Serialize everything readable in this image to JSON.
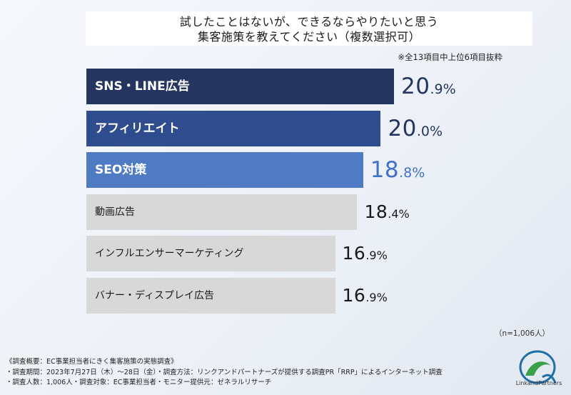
{
  "title": {
    "line1": "試したことはないが、できるならやりたいと思う",
    "line2": "集客施策を教えてください（複数選択可）"
  },
  "note_top": "※全13項目中上位6項目抜粋",
  "colors": {
    "bar1": "#24365f",
    "bar2": "#2e4c8e",
    "bar3": "#4f7bc5",
    "bar_rest": "#d8d8d8",
    "value_top": "#24365f",
    "value_third": "#3f72c4",
    "value_rest": "#1a1a1a"
  },
  "chart_data": {
    "type": "bar",
    "orientation": "horizontal",
    "categories": [
      "SNS・LINE広告",
      "アフィリエイト",
      "SEO対策",
      "動画広告",
      "インフルエンサーマーケティング",
      "バナー・ディスプレイ広告"
    ],
    "values": [
      20.9,
      20.0,
      18.8,
      18.4,
      16.9,
      16.9
    ],
    "labels": [
      {
        "int": "20",
        "dec": ".9%"
      },
      {
        "int": "20",
        "dec": ".0%"
      },
      {
        "int": "18",
        "dec": ".8%"
      },
      {
        "int": "18",
        "dec": ".4%"
      },
      {
        "int": "16",
        "dec": ".9%"
      },
      {
        "int": "16",
        "dec": ".9%"
      }
    ]
  },
  "n_note": "（n=1,006人）",
  "footnotes": [
    "《調査概要：EC事業担当者にきく集客施策の実態調査》",
    "・調査期間：2023年7月27日（木）～28日（金）・調査方法：リンクアンドパートナーズが提供する調査PR「RRP」によるインターネット調査",
    "・調査人数：1,006人・調査対象：EC事業担当者・モニター提供元：ゼネラルリサーチ"
  ],
  "logo": {
    "icon": "link-and-partners-logo-icon",
    "text": "LinkandPartners"
  }
}
